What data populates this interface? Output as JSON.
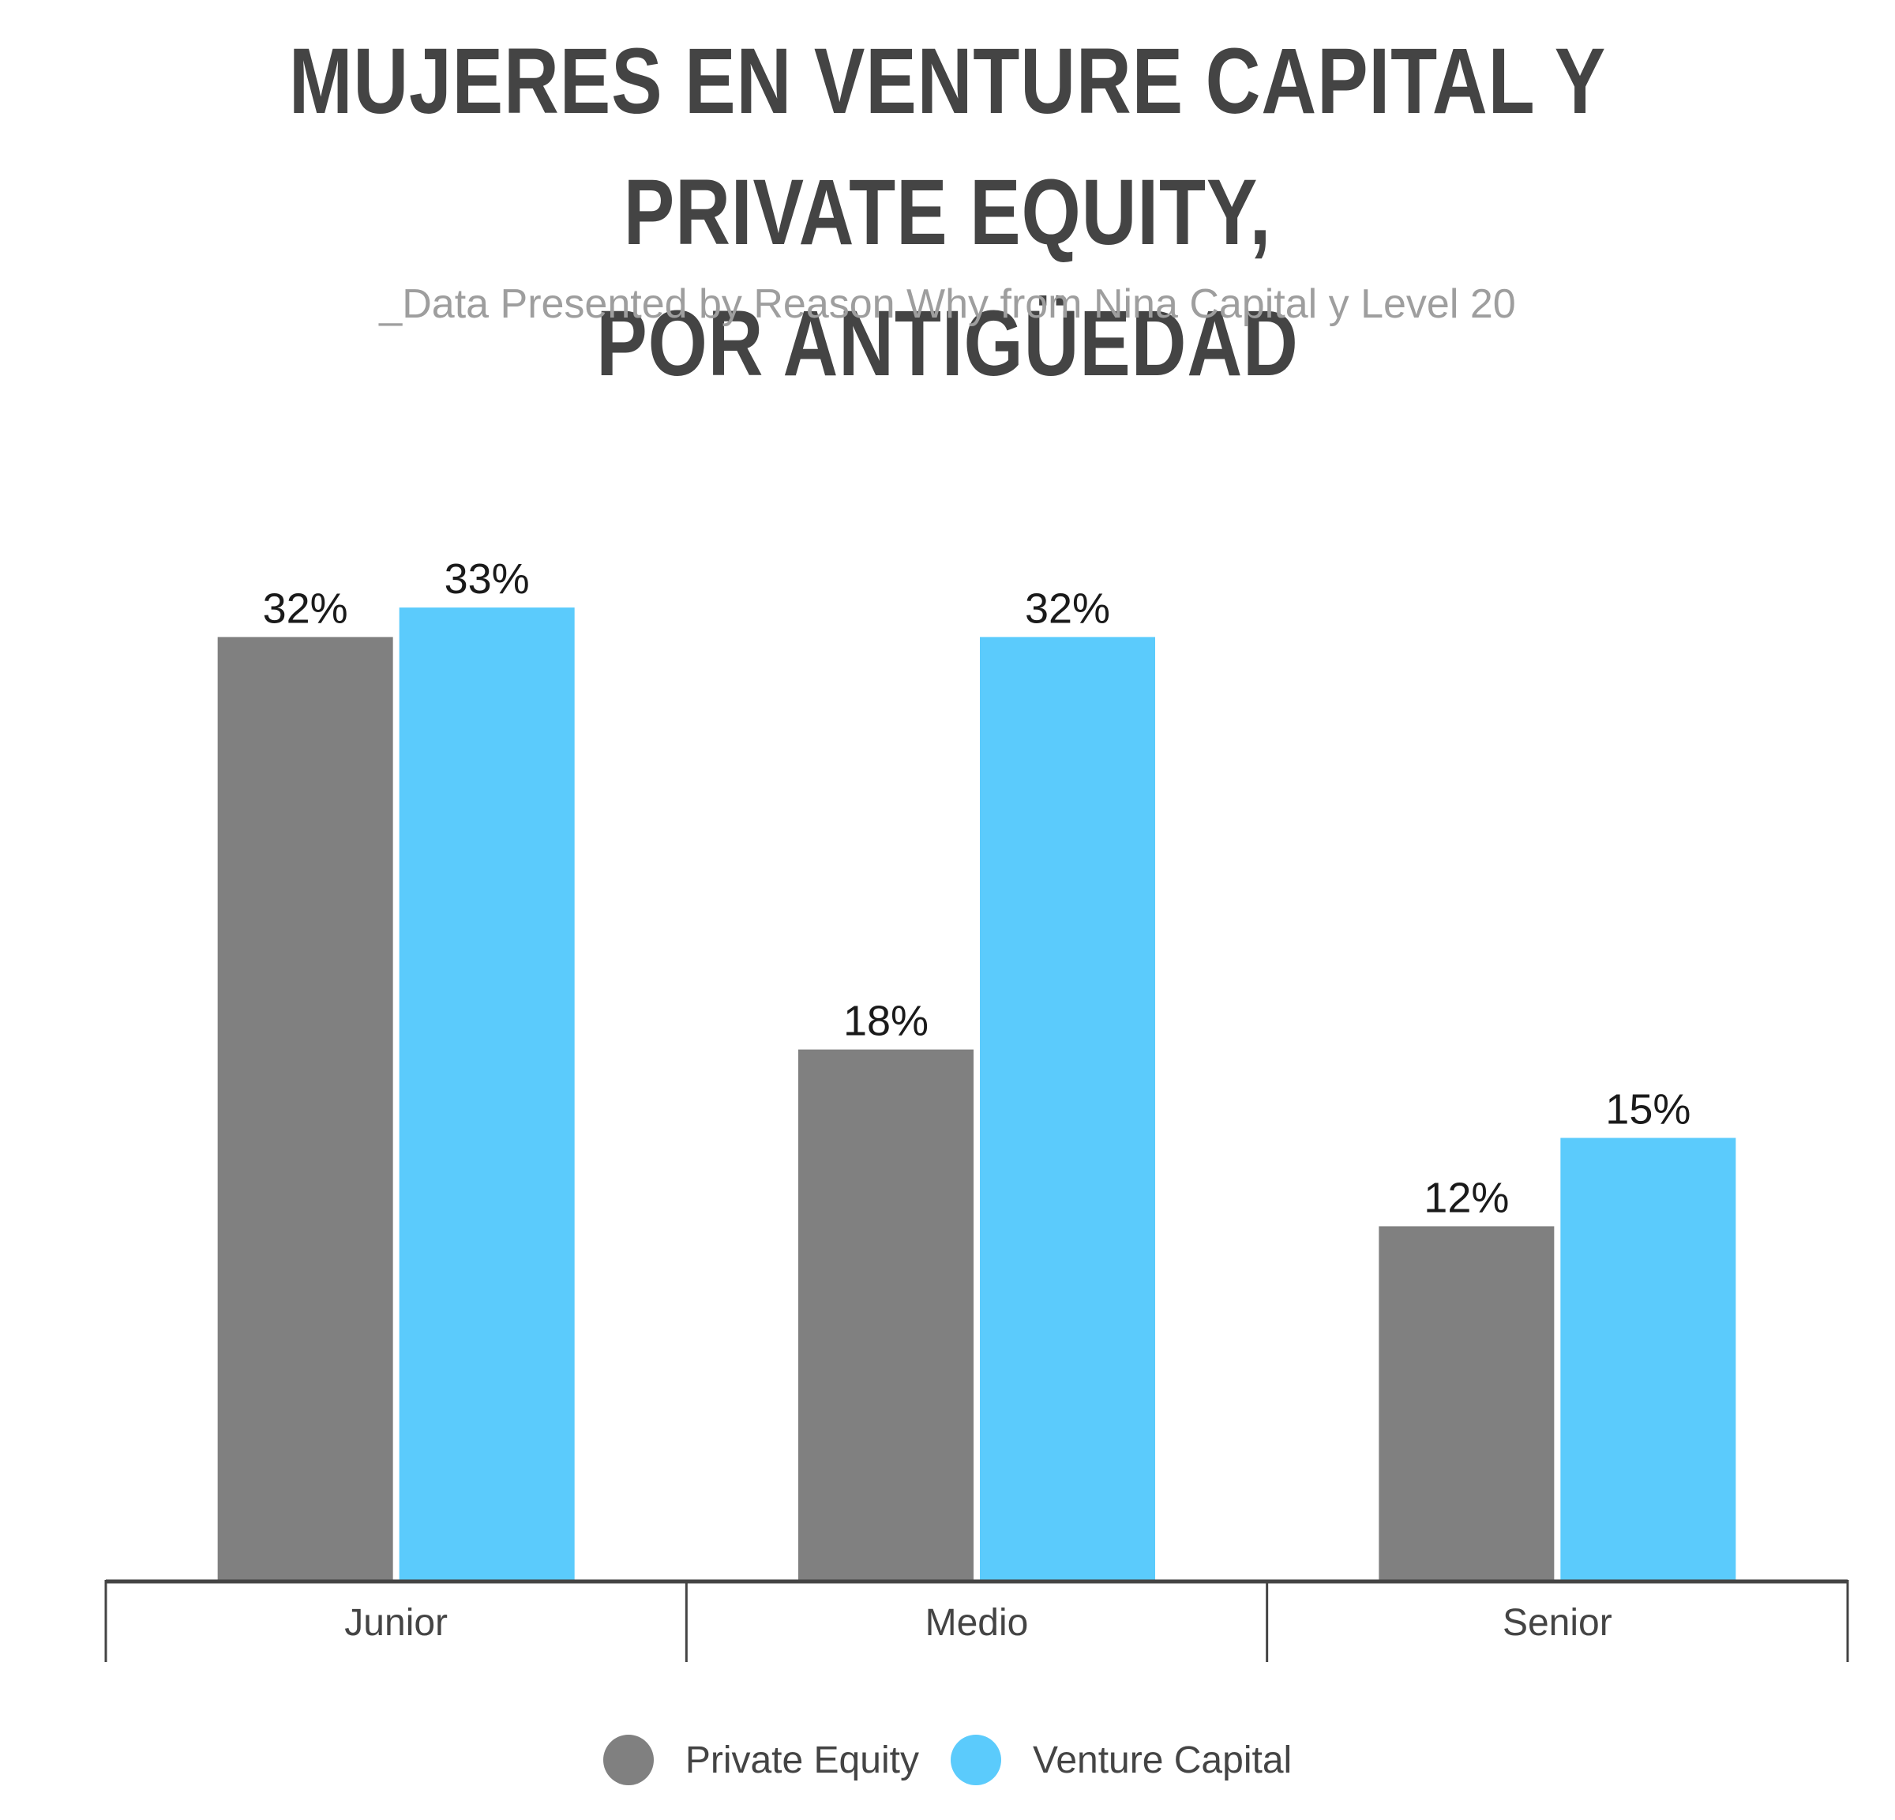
{
  "header": {
    "title_line1": "MUJERES EN VENTURE CAPITAL Y PRIVATE EQUITY,",
    "title_line2": "POR ANTIGÜEDAD",
    "subtitle": "_Data Presented by Reason Why from Nina Capital y Level 20"
  },
  "colors": {
    "private_equity": "#808080",
    "venture_capital": "#5bcbfc",
    "axis": "#444444",
    "label_text": "#1a1a1a",
    "tick_text": "#444444"
  },
  "chart_data": {
    "type": "bar",
    "title": "MUJERES EN VENTURE CAPITAL Y PRIVATE EQUITY, POR ANTIGÜEDAD",
    "subtitle": "_Data Presented by Reason Why from Nina Capital y Level 20",
    "categories": [
      "Junior",
      "Medio",
      "Senior"
    ],
    "series": [
      {
        "name": "Private Equity",
        "values": [
          32,
          18,
          12
        ],
        "labels": [
          "32%",
          "18%",
          "12%"
        ],
        "color": "#808080"
      },
      {
        "name": "Venture Capital",
        "values": [
          33,
          32,
          15
        ],
        "labels": [
          "33%",
          "32%",
          "15%"
        ],
        "color": "#5bcbfc"
      }
    ],
    "xlabel": "",
    "ylabel": "",
    "ylim": [
      0,
      40
    ],
    "grid": false,
    "legend_position": "bottom-center"
  }
}
